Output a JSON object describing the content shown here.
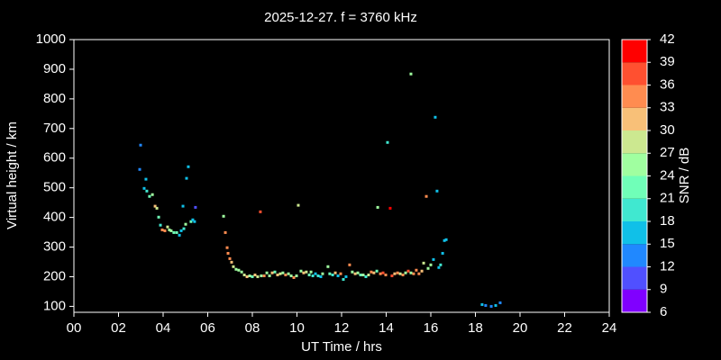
{
  "chart_data": {
    "type": "scatter",
    "title": "2025-12-27. f = 3760 kHz",
    "x_label": "UT Time / hrs",
    "y_label": "Virtual height / km",
    "xlim": [
      0,
      24
    ],
    "ylim": [
      80,
      1000
    ],
    "xticks": [
      {
        "value": 0,
        "label": "00"
      },
      {
        "value": 2,
        "label": "02"
      },
      {
        "value": 4,
        "label": "04"
      },
      {
        "value": 6,
        "label": "06"
      },
      {
        "value": 8,
        "label": "08"
      },
      10,
      12,
      14,
      16,
      18,
      20,
      22,
      24
    ],
    "yticks": [
      100,
      200,
      300,
      400,
      500,
      600,
      700,
      800,
      900,
      1000
    ],
    "colorbar": {
      "label": "SNR / dB",
      "lim": [
        6,
        42
      ],
      "ticks": [
        6,
        9,
        12,
        15,
        18,
        21,
        24,
        27,
        30,
        33,
        36,
        39,
        42
      ],
      "colors": [
        "#8000ff",
        "#5050ff",
        "#2088ff",
        "#10c0e8",
        "#40e8d0",
        "#70ffb8",
        "#a0ffa0",
        "#cce890",
        "#f8c078",
        "#ff8c50",
        "#ff5030",
        "#ff0000"
      ]
    },
    "x": [
      2.99,
      2.95,
      3.15,
      3.23,
      3.27,
      3.39,
      3.52,
      3.64,
      3.72,
      3.8,
      3.88,
      3.96,
      4.08,
      4.2,
      4.28,
      4.36,
      4.48,
      4.61,
      4.73,
      4.81,
      4.93,
      5.01,
      4.89,
      5.05,
      5.13,
      5.25,
      5.33,
      5.41,
      5.45,
      6.71,
      6.79,
      6.87,
      6.91,
      6.99,
      7.07,
      7.15,
      7.27,
      7.39,
      7.52,
      7.64,
      7.76,
      7.88,
      8.0,
      8.12,
      8.24,
      8.36,
      8.4,
      8.53,
      8.65,
      8.77,
      8.89,
      9.01,
      9.13,
      9.25,
      9.37,
      9.49,
      9.62,
      9.74,
      9.86,
      9.98,
      10.06,
      10.18,
      10.3,
      10.42,
      10.55,
      10.63,
      10.71,
      10.83,
      10.95,
      11.07,
      11.15,
      11.39,
      11.47,
      11.6,
      11.72,
      11.84,
      11.96,
      12.08,
      12.2,
      12.36,
      12.48,
      12.61,
      12.73,
      12.85,
      12.97,
      13.09,
      13.21,
      13.33,
      13.45,
      13.58,
      13.62,
      13.74,
      13.86,
      13.98,
      14.06,
      14.18,
      14.26,
      14.38,
      14.51,
      14.63,
      14.75,
      14.87,
      14.99,
      15.11,
      15.11,
      15.23,
      15.35,
      15.47,
      15.6,
      15.68,
      15.8,
      15.88,
      16.0,
      16.12,
      16.2,
      16.28,
      16.36,
      16.44,
      16.53,
      16.61,
      16.69,
      18.3,
      18.46,
      18.71,
      18.91,
      19.11
    ],
    "y": [
      644,
      562,
      498,
      529,
      489,
      471,
      477,
      438,
      431,
      401,
      374,
      358,
      355,
      368,
      358,
      355,
      349,
      349,
      340,
      355,
      362,
      377,
      438,
      532,
      571,
      386,
      392,
      386,
      434,
      404,
      349,
      298,
      279,
      261,
      249,
      234,
      225,
      222,
      216,
      206,
      200,
      203,
      200,
      206,
      200,
      419,
      203,
      203,
      213,
      203,
      213,
      216,
      206,
      210,
      213,
      206,
      210,
      203,
      197,
      203,
      441,
      219,
      213,
      216,
      206,
      216,
      203,
      210,
      203,
      200,
      210,
      234,
      210,
      206,
      213,
      203,
      210,
      191,
      200,
      240,
      216,
      210,
      213,
      206,
      206,
      200,
      206,
      216,
      213,
      219,
      434,
      210,
      213,
      206,
      653,
      431,
      203,
      210,
      213,
      210,
      206,
      213,
      219,
      884,
      213,
      210,
      222,
      210,
      219,
      246,
      471,
      228,
      240,
      258,
      738,
      489,
      231,
      240,
      279,
      322,
      325,
      106,
      103,
      100,
      103,
      112
    ],
    "snr": [
      13,
      13,
      16,
      16,
      19,
      22,
      26,
      32,
      29,
      22,
      19,
      35,
      35,
      28,
      26,
      24,
      22,
      22,
      16,
      16,
      19,
      24,
      16,
      16,
      16,
      22,
      16,
      16,
      10,
      26,
      35,
      35,
      35,
      35,
      32,
      29,
      26,
      26,
      24,
      29,
      32,
      24,
      22,
      32,
      29,
      37,
      26,
      35,
      26,
      24,
      32,
      22,
      32,
      29,
      26,
      35,
      26,
      24,
      35,
      26,
      29,
      24,
      32,
      29,
      22,
      26,
      19,
      16,
      19,
      16,
      24,
      24,
      22,
      19,
      32,
      16,
      35,
      19,
      16,
      35,
      24,
      32,
      26,
      22,
      24,
      19,
      29,
      35,
      32,
      22,
      26,
      35,
      37,
      35,
      19,
      40,
      37,
      32,
      35,
      29,
      35,
      26,
      37,
      26,
      26,
      35,
      35,
      35,
      32,
      29,
      35,
      26,
      24,
      16,
      16,
      16,
      16,
      19,
      16,
      16,
      16,
      16,
      13,
      13,
      16,
      13
    ]
  }
}
